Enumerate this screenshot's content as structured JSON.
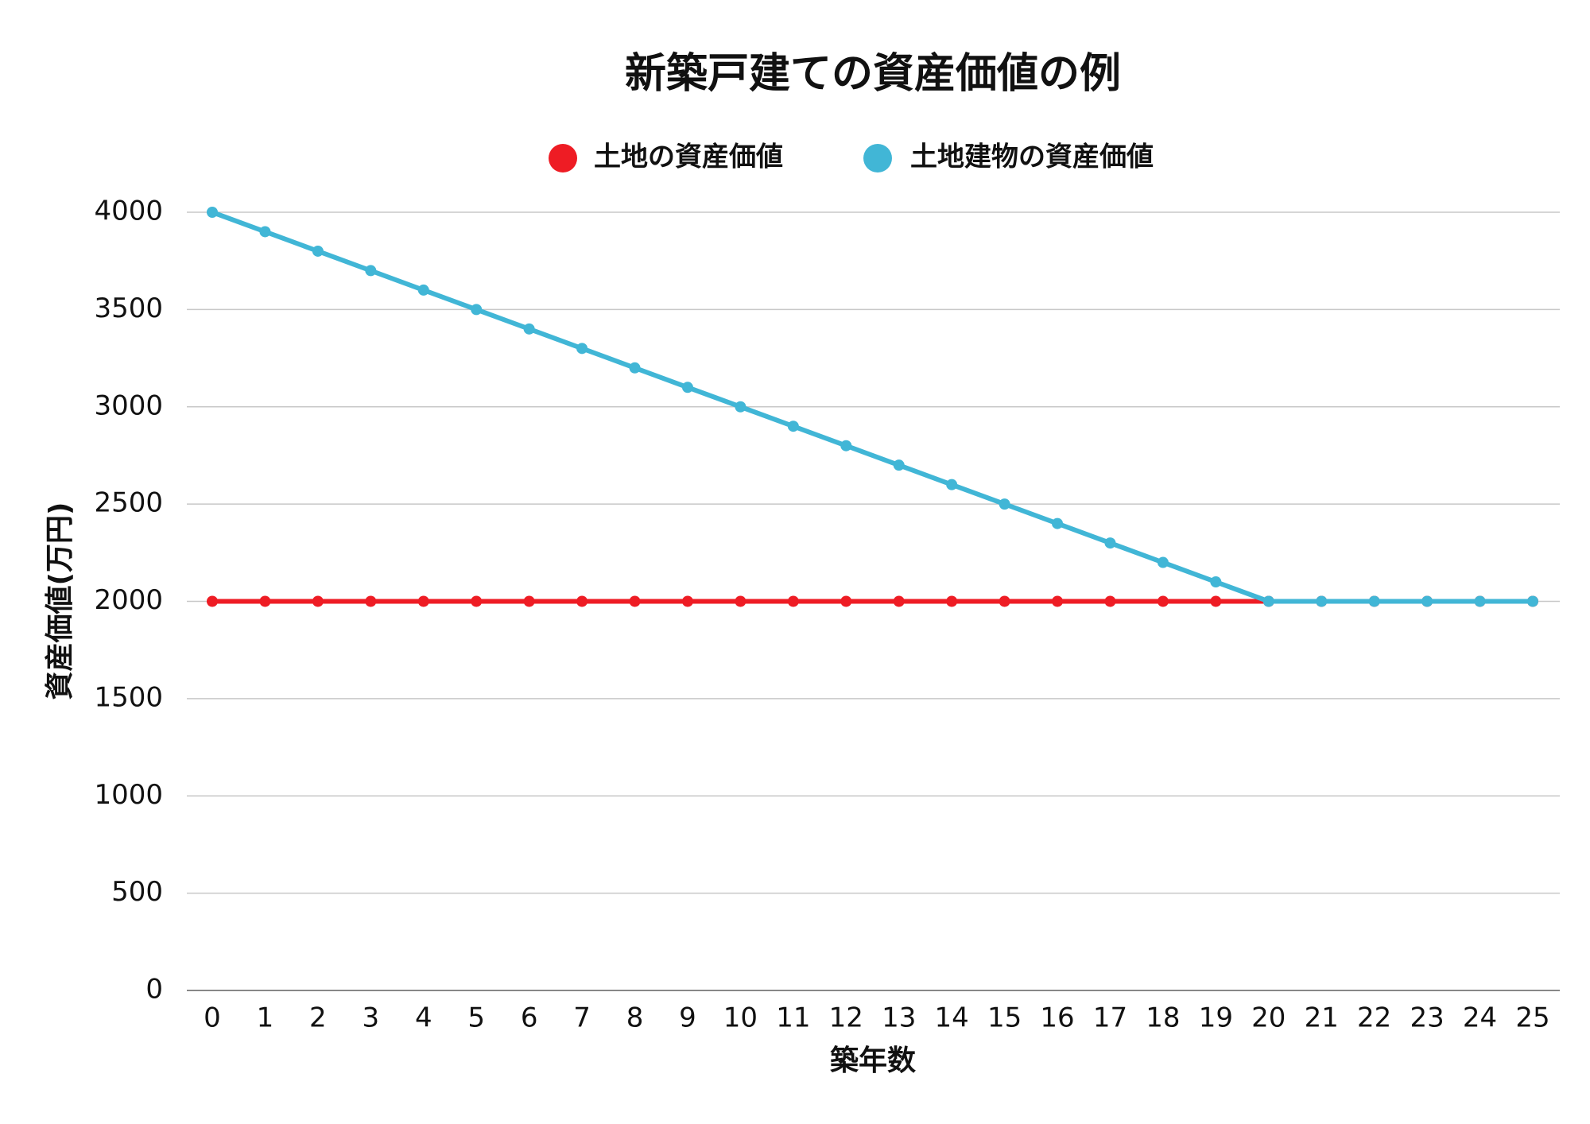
{
  "chart_data": {
    "type": "line",
    "title": "新築戸建ての資産価値の例",
    "x_label": "築年数",
    "y_label": "資産価値(万円)",
    "x": [
      0,
      1,
      2,
      3,
      4,
      5,
      6,
      7,
      8,
      9,
      10,
      11,
      12,
      13,
      14,
      15,
      16,
      17,
      18,
      19,
      20,
      21,
      22,
      23,
      24,
      25
    ],
    "xlim": [
      0,
      25
    ],
    "xticks": [
      0,
      1,
      2,
      3,
      4,
      5,
      6,
      7,
      8,
      9,
      10,
      11,
      12,
      13,
      14,
      15,
      16,
      17,
      18,
      19,
      20,
      21,
      22,
      23,
      24,
      25
    ],
    "ylim": [
      0,
      4000
    ],
    "yticks": [
      0,
      500,
      1000,
      1500,
      2000,
      2500,
      3000,
      3500,
      4000
    ],
    "grid": true,
    "legend": "top",
    "series": [
      {
        "name": "土地の資産価値",
        "color": "#ee1c24",
        "values": [
          2000,
          2000,
          2000,
          2000,
          2000,
          2000,
          2000,
          2000,
          2000,
          2000,
          2000,
          2000,
          2000,
          2000,
          2000,
          2000,
          2000,
          2000,
          2000,
          2000,
          2000,
          2000,
          2000,
          2000,
          2000,
          2000
        ]
      },
      {
        "name": "土地建物の資産価値",
        "color": "#41b6d6",
        "values": [
          4000,
          3900,
          3800,
          3700,
          3600,
          3500,
          3400,
          3300,
          3200,
          3100,
          3000,
          2900,
          2800,
          2700,
          2600,
          2500,
          2400,
          2300,
          2200,
          2100,
          2000,
          2000,
          2000,
          2000,
          2000,
          2000
        ]
      }
    ]
  }
}
